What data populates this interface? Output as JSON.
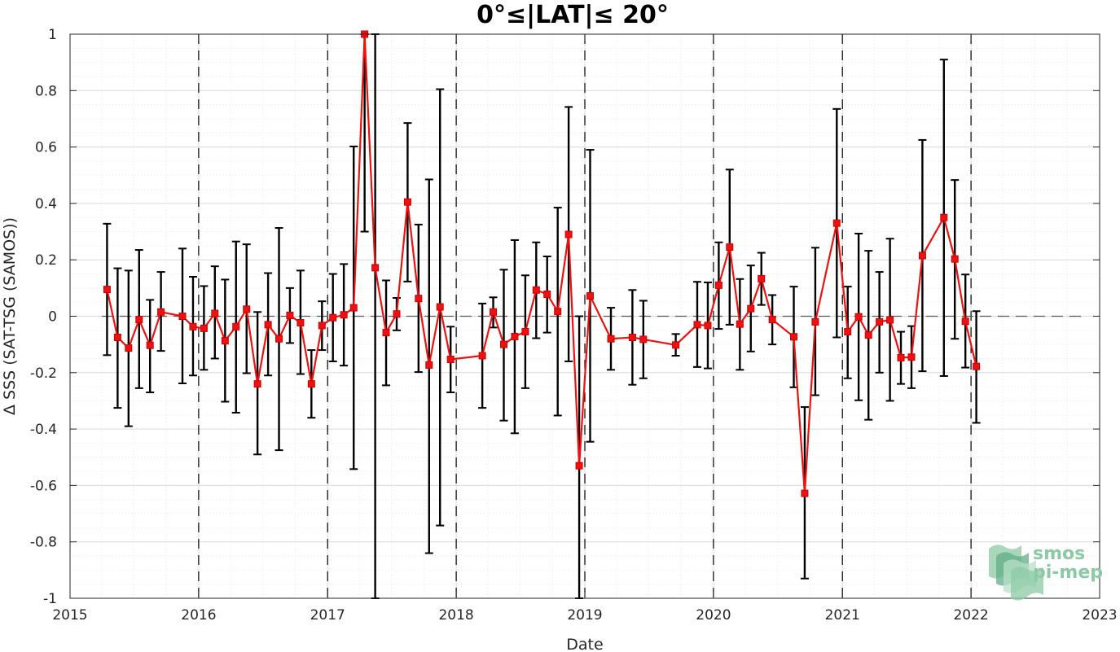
{
  "chart_data": {
    "type": "line",
    "title": "0°≤|LAT|≤ 20°",
    "xlabel": "Date",
    "ylabel": "Δ SSS (SAT-TSG (SAMOS))",
    "xlim": [
      "2015-01-01",
      "2023-01-01"
    ],
    "ylim": [
      -1,
      1
    ],
    "xticks": [
      "2015",
      "2016",
      "2017",
      "2018",
      "2019",
      "2020",
      "2021",
      "2022",
      "2023"
    ],
    "yticks": [
      "1",
      "0.8",
      "0.6",
      "0.4",
      "0.2",
      "0",
      "-0.2",
      "-0.4",
      "-0.6",
      "-0.8",
      "-1"
    ],
    "grid": true,
    "legend": "none",
    "reference_line_y": 0,
    "year_separators": [
      "2016",
      "2017",
      "2018",
      "2019",
      "2020",
      "2021",
      "2022"
    ],
    "colors": {
      "series": "#ee1111",
      "errorbar": "#000000",
      "zero_line": "#555555"
    },
    "series": [
      {
        "marker": "square",
        "points": [
          {
            "x": "2015-04-16",
            "y": 0.095,
            "ylow": -0.138,
            "yhigh": 0.328
          },
          {
            "x": "2015-05-16",
            "y": -0.075,
            "ylow": -0.325,
            "yhigh": 0.17
          },
          {
            "x": "2015-06-16",
            "y": -0.113,
            "ylow": -0.39,
            "yhigh": 0.162
          },
          {
            "x": "2015-07-16",
            "y": -0.012,
            "ylow": -0.255,
            "yhigh": 0.235
          },
          {
            "x": "2015-08-16",
            "y": -0.103,
            "ylow": -0.27,
            "yhigh": 0.058
          },
          {
            "x": "2015-09-16",
            "y": 0.015,
            "ylow": -0.123,
            "yhigh": 0.157
          },
          {
            "x": "2015-11-16",
            "y": 0.0,
            "ylow": -0.238,
            "yhigh": 0.24
          },
          {
            "x": "2015-12-16",
            "y": -0.037,
            "ylow": -0.21,
            "yhigh": 0.14
          },
          {
            "x": "2016-01-16",
            "y": -0.043,
            "ylow": -0.19,
            "yhigh": 0.107
          },
          {
            "x": "2016-02-16",
            "y": 0.01,
            "ylow": -0.15,
            "yhigh": 0.177
          },
          {
            "x": "2016-03-16",
            "y": -0.087,
            "ylow": -0.303,
            "yhigh": 0.13
          },
          {
            "x": "2016-04-16",
            "y": -0.037,
            "ylow": -0.342,
            "yhigh": 0.265
          },
          {
            "x": "2016-05-16",
            "y": 0.025,
            "ylow": -0.202,
            "yhigh": 0.255
          },
          {
            "x": "2016-06-16",
            "y": -0.24,
            "ylow": -0.49,
            "yhigh": 0.015
          },
          {
            "x": "2016-07-16",
            "y": -0.03,
            "ylow": -0.21,
            "yhigh": 0.153
          },
          {
            "x": "2016-08-16",
            "y": -0.08,
            "ylow": -0.475,
            "yhigh": 0.313
          },
          {
            "x": "2016-09-16",
            "y": 0.003,
            "ylow": -0.095,
            "yhigh": 0.1
          },
          {
            "x": "2016-10-16",
            "y": -0.023,
            "ylow": -0.205,
            "yhigh": 0.162
          },
          {
            "x": "2016-11-16",
            "y": -0.24,
            "ylow": -0.36,
            "yhigh": -0.12
          },
          {
            "x": "2016-12-16",
            "y": -0.033,
            "ylow": -0.12,
            "yhigh": 0.053
          },
          {
            "x": "2017-01-16",
            "y": -0.005,
            "ylow": -0.16,
            "yhigh": 0.15
          },
          {
            "x": "2017-02-16",
            "y": 0.005,
            "ylow": -0.175,
            "yhigh": 0.185
          },
          {
            "x": "2017-03-16",
            "y": 0.03,
            "ylow": -0.542,
            "yhigh": 0.602
          },
          {
            "x": "2017-04-16",
            "y": 1.0,
            "ylow": 0.3,
            "yhigh": 1.0
          },
          {
            "x": "2017-05-16",
            "y": 0.172,
            "ylow": -1.0,
            "yhigh": 1.0
          },
          {
            "x": "2017-06-16",
            "y": -0.058,
            "ylow": -0.245,
            "yhigh": 0.127
          },
          {
            "x": "2017-07-16",
            "y": 0.008,
            "ylow": -0.05,
            "yhigh": 0.065
          },
          {
            "x": "2017-08-16",
            "y": 0.405,
            "ylow": 0.123,
            "yhigh": 0.685
          },
          {
            "x": "2017-09-16",
            "y": 0.063,
            "ylow": -0.198,
            "yhigh": 0.325
          },
          {
            "x": "2017-10-16",
            "y": -0.173,
            "ylow": -0.84,
            "yhigh": 0.485
          },
          {
            "x": "2017-11-16",
            "y": 0.033,
            "ylow": -0.742,
            "yhigh": 0.805
          },
          {
            "x": "2017-12-16",
            "y": -0.153,
            "ylow": -0.27,
            "yhigh": -0.037
          },
          {
            "x": "2018-03-16",
            "y": -0.14,
            "ylow": -0.325,
            "yhigh": 0.045
          },
          {
            "x": "2018-04-16",
            "y": 0.015,
            "ylow": -0.04,
            "yhigh": 0.067
          },
          {
            "x": "2018-05-16",
            "y": -0.1,
            "ylow": -0.37,
            "yhigh": 0.165
          },
          {
            "x": "2018-06-16",
            "y": -0.072,
            "ylow": -0.415,
            "yhigh": 0.27
          },
          {
            "x": "2018-07-16",
            "y": -0.055,
            "ylow": -0.255,
            "yhigh": 0.145
          },
          {
            "x": "2018-08-16",
            "y": 0.093,
            "ylow": -0.078,
            "yhigh": 0.262
          },
          {
            "x": "2018-09-16",
            "y": 0.078,
            "ylow": -0.058,
            "yhigh": 0.212
          },
          {
            "x": "2018-10-16",
            "y": 0.017,
            "ylow": -0.352,
            "yhigh": 0.385
          },
          {
            "x": "2018-11-16",
            "y": 0.29,
            "ylow": -0.16,
            "yhigh": 0.742
          },
          {
            "x": "2018-12-16",
            "y": -0.53,
            "ylow": -1.0,
            "yhigh": 0.0
          },
          {
            "x": "2019-01-16",
            "y": 0.072,
            "ylow": -0.445,
            "yhigh": 0.59
          },
          {
            "x": "2019-03-16",
            "y": -0.08,
            "ylow": -0.19,
            "yhigh": 0.03
          },
          {
            "x": "2019-05-16",
            "y": -0.075,
            "ylow": -0.243,
            "yhigh": 0.093
          },
          {
            "x": "2019-06-16",
            "y": -0.082,
            "ylow": -0.22,
            "yhigh": 0.055
          },
          {
            "x": "2019-09-16",
            "y": -0.102,
            "ylow": -0.14,
            "yhigh": -0.063
          },
          {
            "x": "2019-11-16",
            "y": -0.03,
            "ylow": -0.18,
            "yhigh": 0.122
          },
          {
            "x": "2019-12-16",
            "y": -0.033,
            "ylow": -0.185,
            "yhigh": 0.12
          },
          {
            "x": "2020-01-16",
            "y": 0.11,
            "ylow": -0.045,
            "yhigh": 0.262
          },
          {
            "x": "2020-02-16",
            "y": 0.245,
            "ylow": -0.03,
            "yhigh": 0.52
          },
          {
            "x": "2020-03-16",
            "y": -0.028,
            "ylow": -0.19,
            "yhigh": 0.132
          },
          {
            "x": "2020-04-16",
            "y": 0.027,
            "ylow": -0.125,
            "yhigh": 0.18
          },
          {
            "x": "2020-05-16",
            "y": 0.133,
            "ylow": 0.04,
            "yhigh": 0.225
          },
          {
            "x": "2020-06-16",
            "y": -0.012,
            "ylow": -0.1,
            "yhigh": 0.075
          },
          {
            "x": "2020-08-16",
            "y": -0.073,
            "ylow": -0.252,
            "yhigh": 0.105
          },
          {
            "x": "2020-09-16",
            "y": -0.628,
            "ylow": -0.93,
            "yhigh": -0.322
          },
          {
            "x": "2020-10-16",
            "y": -0.02,
            "ylow": -0.28,
            "yhigh": 0.243
          },
          {
            "x": "2020-12-16",
            "y": 0.33,
            "ylow": -0.075,
            "yhigh": 0.735
          },
          {
            "x": "2021-01-16",
            "y": -0.055,
            "ylow": -0.22,
            "yhigh": 0.105
          },
          {
            "x": "2021-02-16",
            "y": -0.002,
            "ylow": -0.298,
            "yhigh": 0.293
          },
          {
            "x": "2021-03-16",
            "y": -0.067,
            "ylow": -0.367,
            "yhigh": 0.232
          },
          {
            "x": "2021-04-16",
            "y": -0.02,
            "ylow": -0.2,
            "yhigh": 0.157
          },
          {
            "x": "2021-05-16",
            "y": -0.013,
            "ylow": -0.3,
            "yhigh": 0.275
          },
          {
            "x": "2021-06-16",
            "y": -0.147,
            "ylow": -0.24,
            "yhigh": -0.055
          },
          {
            "x": "2021-07-16",
            "y": -0.145,
            "ylow": -0.255,
            "yhigh": -0.035
          },
          {
            "x": "2021-08-16",
            "y": 0.215,
            "ylow": -0.195,
            "yhigh": 0.625
          },
          {
            "x": "2021-10-16",
            "y": 0.35,
            "ylow": -0.212,
            "yhigh": 0.91
          },
          {
            "x": "2021-11-16",
            "y": 0.203,
            "ylow": -0.08,
            "yhigh": 0.483
          },
          {
            "x": "2021-12-16",
            "y": -0.018,
            "ylow": -0.182,
            "yhigh": 0.148
          },
          {
            "x": "2022-01-16",
            "y": -0.178,
            "ylow": -0.378,
            "yhigh": 0.018
          }
        ]
      }
    ]
  },
  "logo": {
    "line1": "smos",
    "line2": "pi-mep",
    "colors": [
      "#8cc9a6",
      "#5fae85",
      "#b9e0c9"
    ]
  }
}
